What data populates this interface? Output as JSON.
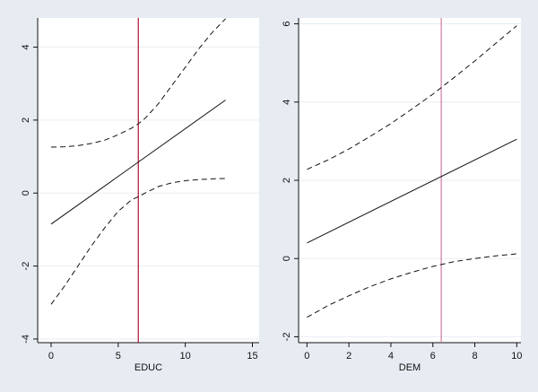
{
  "chart_data": [
    {
      "type": "line",
      "title": "",
      "xlabel": "EDUC",
      "ylabel": "",
      "xlim": [
        -1,
        15.5
      ],
      "ylim": [
        -4.1,
        4.8
      ],
      "xticks": [
        0,
        5,
        10,
        15
      ],
      "yticks": [
        -4,
        -2,
        0,
        2,
        4
      ],
      "grid": "horizontal",
      "legend": "none",
      "reference_line": {
        "x": 6.5,
        "color": "#b01030"
      },
      "series": [
        {
          "style": "solid",
          "x": [
            0,
            13
          ],
          "y": [
            -0.85,
            2.55
          ]
        },
        {
          "style": "dashed",
          "x": [
            0,
            1,
            2,
            3,
            4,
            5,
            6,
            6.5,
            7,
            8,
            9,
            10,
            11,
            12,
            13
          ],
          "y": [
            1.26,
            1.27,
            1.3,
            1.36,
            1.45,
            1.6,
            1.78,
            1.9,
            2.05,
            2.45,
            2.95,
            3.45,
            3.95,
            4.4,
            4.78
          ]
        },
        {
          "style": "dashed",
          "x": [
            0,
            1,
            2,
            3,
            4,
            5,
            6,
            6.5,
            7,
            8,
            9,
            10,
            11,
            12,
            13
          ],
          "y": [
            -3.05,
            -2.55,
            -2.0,
            -1.45,
            -0.95,
            -0.5,
            -0.18,
            -0.1,
            0.0,
            0.18,
            0.28,
            0.34,
            0.37,
            0.39,
            0.4
          ]
        }
      ]
    },
    {
      "type": "line",
      "title": "",
      "xlabel": "DEM",
      "ylabel": "",
      "xlim": [
        -0.4,
        10.2
      ],
      "ylim": [
        -2.15,
        6.15
      ],
      "xticks": [
        0,
        2,
        4,
        6,
        8,
        10
      ],
      "yticks": [
        -2,
        0,
        2,
        4,
        6
      ],
      "grid": "horizontal",
      "legend": "none",
      "reference_line": {
        "x": 6.4,
        "color": "#d07aa0"
      },
      "series": [
        {
          "style": "solid",
          "x": [
            0,
            10
          ],
          "y": [
            0.4,
            3.05
          ]
        },
        {
          "style": "dashed",
          "x": [
            0,
            1,
            2,
            3,
            4,
            5,
            6,
            7,
            8,
            9,
            10
          ],
          "y": [
            2.28,
            2.52,
            2.8,
            3.12,
            3.45,
            3.82,
            4.2,
            4.62,
            5.05,
            5.5,
            5.95
          ]
        },
        {
          "style": "dashed",
          "x": [
            0,
            1,
            2,
            3,
            4,
            5,
            6,
            7,
            8,
            9,
            10
          ],
          "y": [
            -1.5,
            -1.2,
            -0.95,
            -0.72,
            -0.52,
            -0.35,
            -0.2,
            -0.08,
            0.0,
            0.07,
            0.12
          ]
        }
      ]
    }
  ]
}
